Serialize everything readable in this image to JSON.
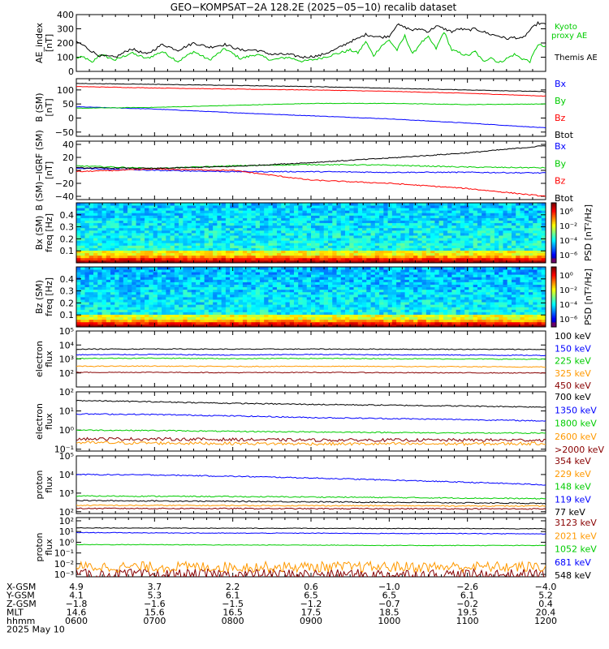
{
  "title": "GEO−KOMPSAT−2A 128.2E (2025−05−10) recalib dataset",
  "chart_data": [
    {
      "type": "line",
      "id": "ae",
      "ylabel": "AE_index\n[nT]",
      "ylim": [
        0,
        400
      ],
      "yticks": [
        0,
        100,
        200,
        300,
        400
      ],
      "series": [
        {
          "name": "Kyoto proxy AE",
          "color": "#00cc00",
          "x": [
            6.0,
            6.1,
            6.2,
            6.3,
            6.5,
            6.7,
            6.9,
            7.1,
            7.3,
            7.5,
            7.7,
            7.9,
            8.1,
            8.3,
            8.5,
            8.7,
            8.9,
            9.1,
            9.3,
            9.5,
            9.6,
            9.7,
            9.8,
            9.9,
            10.0,
            10.1,
            10.2,
            10.3,
            10.4,
            10.5,
            10.6,
            10.7,
            10.8,
            10.9,
            11.0,
            11.1,
            11.2,
            11.3,
            11.4,
            11.5,
            11.6,
            11.7,
            11.8,
            11.9,
            12.0
          ],
          "values": [
            95,
            100,
            60,
            120,
            80,
            130,
            90,
            140,
            70,
            140,
            80,
            160,
            90,
            120,
            80,
            100,
            70,
            90,
            120,
            150,
            130,
            210,
            110,
            180,
            220,
            150,
            250,
            120,
            200,
            240,
            160,
            280,
            150,
            130,
            110,
            140,
            70,
            100,
            60,
            90,
            120,
            90,
            70,
            190,
            170
          ]
        },
        {
          "name": "Themis AE",
          "color": "#000000",
          "x": [
            6.0,
            6.1,
            6.2,
            6.3,
            6.5,
            6.7,
            6.9,
            7.1,
            7.3,
            7.5,
            7.7,
            7.9,
            8.1,
            8.3,
            8.5,
            8.7,
            8.9,
            9.1,
            9.3,
            9.5,
            9.6,
            9.7,
            9.8,
            9.9,
            10.0,
            10.1,
            10.2,
            10.3,
            10.4,
            10.5,
            10.6,
            10.7,
            10.8,
            10.9,
            11.0,
            11.1,
            11.2,
            11.3,
            11.4,
            11.5,
            11.6,
            11.7,
            11.8,
            11.9,
            12.0
          ],
          "values": [
            210,
            180,
            140,
            110,
            100,
            160,
            120,
            190,
            150,
            200,
            170,
            190,
            150,
            150,
            120,
            120,
            100,
            110,
            150,
            210,
            230,
            260,
            250,
            240,
            250,
            330,
            310,
            290,
            300,
            280,
            320,
            300,
            280,
            300,
            290,
            300,
            280,
            260,
            250,
            230,
            240,
            230,
            290,
            340,
            330
          ]
        }
      ]
    },
    {
      "type": "line",
      "id": "bsm",
      "ylabel": "B (SM)\n[nT]",
      "ylim": [
        -65,
        140
      ],
      "yticks": [
        -50,
        0,
        50,
        100
      ],
      "series": [
        {
          "name": "Bx",
          "color": "#0000ff",
          "x": [
            6,
            7,
            8,
            9,
            10,
            11,
            12
          ],
          "values": [
            40,
            32,
            19,
            8,
            -3,
            -18,
            -35
          ]
        },
        {
          "name": "By",
          "color": "#00cc00",
          "x": [
            6,
            7,
            8,
            9,
            10,
            11,
            12
          ],
          "values": [
            35,
            38,
            45,
            52,
            52,
            48,
            50
          ]
        },
        {
          "name": "Bz",
          "color": "#ff0000",
          "x": [
            6,
            7,
            8,
            9,
            10,
            11,
            12
          ],
          "values": [
            112,
            107,
            103,
            100,
            95,
            88,
            78
          ]
        },
        {
          "name": "Btot",
          "color": "#000000",
          "x": [
            6,
            7,
            8,
            9,
            10,
            11,
            12
          ],
          "values": [
            123,
            120,
            116,
            112,
            106,
            100,
            94
          ]
        }
      ]
    },
    {
      "type": "line",
      "id": "bigrf",
      "ylabel": "B (SM)−IGRF (SM)\n[nT]",
      "ylim": [
        -45,
        45
      ],
      "yticks": [
        -40,
        -20,
        0,
        20,
        40
      ],
      "series": [
        {
          "name": "Bx",
          "color": "#0000ff",
          "x": [
            6,
            7,
            8,
            9,
            10,
            11,
            12
          ],
          "values": [
            3,
            0,
            -2,
            -2,
            -3,
            -3,
            -4
          ]
        },
        {
          "name": "By",
          "color": "#00cc00",
          "x": [
            6,
            7,
            8,
            9,
            10,
            11,
            12
          ],
          "values": [
            7,
            3,
            7,
            9,
            8,
            5,
            4
          ]
        },
        {
          "name": "Bz",
          "color": "#ff0000",
          "x": [
            6,
            7,
            8,
            9,
            10,
            11,
            12
          ],
          "values": [
            -2,
            2,
            0,
            -15,
            -20,
            -28,
            -40
          ]
        },
        {
          "name": "Btot",
          "color": "#000000",
          "x": [
            6,
            7,
            8,
            9,
            10,
            11,
            12
          ],
          "values": [
            4,
            3,
            6,
            12,
            19,
            27,
            38
          ]
        }
      ]
    },
    {
      "type": "heatmap",
      "id": "specbx",
      "ylabel": "Bx (SM)\nfreq [Hz]",
      "ylim": [
        0.0,
        0.5
      ],
      "yticks": [
        0.1,
        0.2,
        0.3,
        0.4
      ],
      "colorbar_label": "PSD [nT²/Hz]",
      "colorbar_ticks": [
        "10⁶",
        "10⁻²",
        "10⁻⁴",
        "10⁻⁶"
      ]
    },
    {
      "type": "heatmap",
      "id": "specbz",
      "ylabel": "Bz (SM)\nfreq [Hz]",
      "ylim": [
        0.0,
        0.5
      ],
      "yticks": [
        0.1,
        0.2,
        0.3,
        0.4
      ],
      "colorbar_label": "PSD [nT²/Hz]",
      "colorbar_ticks": [
        "10⁰",
        "10⁻²",
        "10⁻⁴",
        "10⁻⁶"
      ]
    },
    {
      "type": "line",
      "id": "elow",
      "ylabel": "electron\nflux",
      "yscale": "log",
      "ylim": [
        10,
        100000
      ],
      "yticks": [
        {
          "v": 100,
          "t": "10²"
        },
        {
          "v": 1000,
          "t": "10³"
        },
        {
          "v": 10000,
          "t": "10⁴"
        },
        {
          "v": 100000,
          "t": "10⁵"
        }
      ],
      "series": [
        {
          "name": "100 keV",
          "color": "#000000",
          "x": [
            6,
            7,
            8,
            9,
            10,
            11,
            12
          ],
          "values": [
            5000,
            5200,
            5000,
            5100,
            5000,
            4900,
            4800
          ]
        },
        {
          "name": "150 keV",
          "color": "#0000ff",
          "x": [
            6,
            7,
            8,
            9,
            10,
            11,
            12
          ],
          "values": [
            2000,
            2100,
            1900,
            2100,
            2000,
            1900,
            1800
          ]
        },
        {
          "name": "225 keV",
          "color": "#00cc00",
          "x": [
            6,
            7,
            8,
            9,
            10,
            11,
            12
          ],
          "values": [
            1100,
            1150,
            1050,
            1100,
            1050,
            1000,
            950
          ]
        },
        {
          "name": "325 keV",
          "color": "#ff9900",
          "x": [
            6,
            7,
            8,
            9,
            10,
            11,
            12
          ],
          "values": [
            300,
            310,
            290,
            300,
            290,
            280,
            270
          ]
        },
        {
          "name": "450 keV",
          "color": "#880000",
          "x": [
            6,
            7,
            8,
            9,
            10,
            11,
            12
          ],
          "values": [
            110,
            112,
            105,
            110,
            105,
            102,
            100
          ]
        }
      ]
    },
    {
      "type": "line",
      "id": "ehigh",
      "ylabel": "electron\nflux",
      "yscale": "log",
      "ylim": [
        0.08,
        100
      ],
      "yticks": [
        {
          "v": 0.1,
          "t": "10⁻¹"
        },
        {
          "v": 1,
          "t": "10⁰"
        },
        {
          "v": 10,
          "t": "10¹"
        },
        {
          "v": 100,
          "t": "10²"
        }
      ],
      "series": [
        {
          "name": "700 keV",
          "color": "#000000",
          "x": [
            6,
            7,
            8,
            9,
            10,
            11,
            12
          ],
          "values": [
            35,
            30,
            25,
            22,
            20,
            18,
            16
          ]
        },
        {
          "name": "1350 keV",
          "color": "#0000ff",
          "x": [
            6,
            7,
            8,
            9,
            10,
            11,
            12
          ],
          "values": [
            7,
            6.5,
            5.5,
            4.5,
            4,
            3.5,
            3
          ]
        },
        {
          "name": "1800 keV",
          "color": "#00cc00",
          "x": [
            6,
            7,
            8,
            9,
            10,
            11,
            12
          ],
          "values": [
            1.0,
            0.95,
            0.85,
            0.8,
            0.75,
            0.7,
            0.7
          ]
        },
        {
          "name": "2600 keV",
          "color": "#ff9900",
          "x": [
            6,
            7,
            8,
            9,
            10,
            11,
            12
          ],
          "values": [
            0.22,
            0.21,
            0.2,
            0.19,
            0.19,
            0.19,
            0.2
          ]
        },
        {
          "name": ">2000 keV",
          "color": "#880000",
          "x": [
            6,
            7,
            8,
            9,
            10,
            11,
            12
          ],
          "values": [
            0.35,
            0.34,
            0.32,
            0.3,
            0.3,
            0.3,
            0.3
          ]
        }
      ]
    },
    {
      "type": "line",
      "id": "plow",
      "ylabel": "proton\nflux",
      "yscale": "log",
      "ylim": [
        80,
        100000
      ],
      "yticks": [
        {
          "v": 100,
          "t": "10²"
        },
        {
          "v": 1000,
          "t": "10³"
        },
        {
          "v": 10000,
          "t": "10⁴"
        },
        {
          "v": 100000,
          "t": "10⁵"
        }
      ],
      "series": [
        {
          "name": "354 keV",
          "color": "#880000",
          "x": [
            6,
            7,
            8,
            9,
            10,
            11,
            12
          ],
          "values": [
            150,
            150,
            148,
            146,
            145,
            143,
            142
          ]
        },
        {
          "name": "229 keV",
          "color": "#ff9900",
          "x": [
            6,
            7,
            8,
            9,
            10,
            11,
            12
          ],
          "values": [
            220,
            218,
            215,
            212,
            210,
            205,
            200
          ]
        },
        {
          "name": "148 keV",
          "color": "#00cc00",
          "x": [
            6,
            7,
            8,
            9,
            10,
            11,
            12
          ],
          "values": [
            700,
            680,
            650,
            620,
            580,
            540,
            500
          ]
        },
        {
          "name": "119 keV",
          "color": "#0000ff",
          "x": [
            6,
            7,
            8,
            9,
            10,
            11,
            12
          ],
          "values": [
            10000,
            9500,
            8000,
            6500,
            5000,
            3800,
            2800
          ]
        },
        {
          "name": "77 keV",
          "color": "#000000",
          "x": [
            6,
            7,
            8,
            9,
            10,
            11,
            12
          ],
          "values": [
            400,
            380,
            360,
            340,
            320,
            300,
            280
          ]
        }
      ]
    },
    {
      "type": "line",
      "id": "phigh",
      "ylabel": "proton\nflux",
      "yscale": "log",
      "ylim": [
        0.0006,
        200
      ],
      "yticks": [
        {
          "v": 0.001,
          "t": "10⁻³"
        },
        {
          "v": 0.01,
          "t": "10⁻²"
        },
        {
          "v": 0.1,
          "t": "10⁻¹"
        },
        {
          "v": 1,
          "t": "10⁰"
        },
        {
          "v": 10,
          "t": "10¹"
        },
        {
          "v": 100,
          "t": "10²"
        }
      ],
      "series": [
        {
          "name": "3123 keV",
          "color": "#880000",
          "x": [
            6,
            7,
            8,
            9,
            10,
            11,
            12
          ],
          "values": [
            0.001,
            0.001,
            0.001,
            0.001,
            0.001,
            0.001,
            0.001
          ]
        },
        {
          "name": "2021 keV",
          "color": "#ff9900",
          "x": [
            6,
            7,
            8,
            9,
            10,
            11,
            12
          ],
          "values": [
            0.005,
            0.005,
            0.005,
            0.005,
            0.005,
            0.005,
            0.005
          ]
        },
        {
          "name": "1052 keV",
          "color": "#00cc00",
          "x": [
            6,
            7,
            8,
            9,
            10,
            11,
            12
          ],
          "values": [
            0.6,
            0.6,
            0.55,
            0.55,
            0.5,
            0.5,
            0.5
          ]
        },
        {
          "name": "681 keV",
          "color": "#0000ff",
          "x": [
            6,
            7,
            8,
            9,
            10,
            11,
            12
          ],
          "values": [
            8,
            7.5,
            7,
            7,
            6.5,
            6.5,
            6
          ]
        },
        {
          "name": "548 keV",
          "color": "#000000",
          "x": [
            6,
            7,
            8,
            9,
            10,
            11,
            12
          ],
          "values": [
            22,
            21,
            20,
            20,
            19,
            19,
            18
          ]
        }
      ]
    }
  ],
  "ephemeris": {
    "rows": [
      {
        "label": "X-GSM",
        "values": [
          "4.9",
          "3.7",
          "2.2",
          "0.6",
          "−1.0",
          "−2.6",
          "−4.0"
        ]
      },
      {
        "label": "Y-GSM",
        "values": [
          "4.1",
          "5.3",
          "6.1",
          "6.5",
          "6.5",
          "6.1",
          "5.2"
        ]
      },
      {
        "label": "Z-GSM",
        "values": [
          "−1.8",
          "−1.6",
          "−1.5",
          "−1.2",
          "−0.7",
          "−0.2",
          "0.4"
        ]
      },
      {
        "label": "MLT",
        "values": [
          "14.6",
          "15.6",
          "16.5",
          "17.5",
          "18.5",
          "19.5",
          "20.4"
        ]
      },
      {
        "label": "hhmm",
        "values": [
          "0600",
          "0700",
          "0800",
          "0900",
          "1000",
          "1100",
          "1200"
        ]
      }
    ],
    "date": "2025 May 10"
  }
}
